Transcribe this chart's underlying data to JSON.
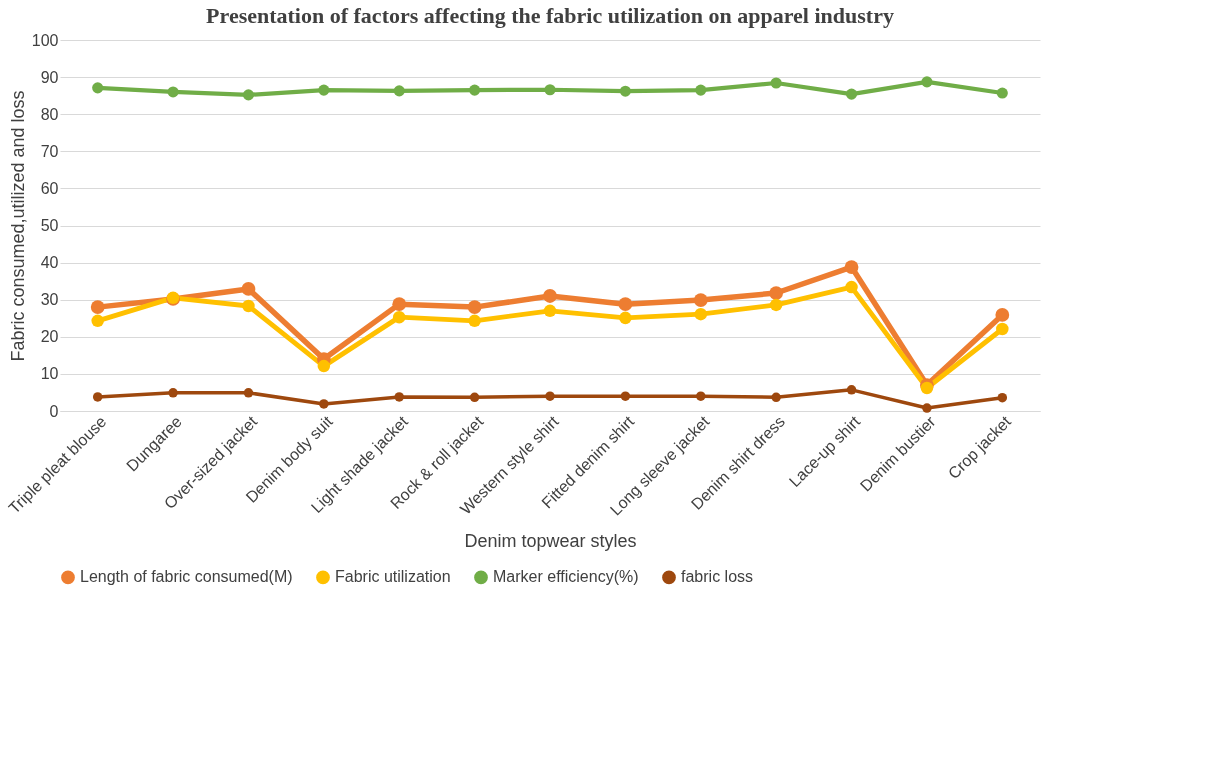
{
  "chart_data": {
    "type": "line",
    "title": "Presentation of factors affecting the fabric utilization on apparel industry",
    "xlabel": "Denim topwear styles",
    "ylabel": "Fabric consumed,utilized and loss",
    "categories": [
      "Triple pleat blouse",
      "Dungaree",
      "Over-sized jacket",
      "Denim body suit",
      "Light shade jacket",
      "Rock & roll jacket",
      "Western style shirt",
      "Fitted denim shirt",
      "Long sleeve jacket",
      "Denim shirt dress",
      "Lace-up shirt",
      "Denim bustier",
      "Crop jacket"
    ],
    "series": [
      {
        "name": "Length of fabric consumed(M)",
        "color": "#ed7d31",
        "values": [
          28,
          30.2,
          32.9,
          14,
          28.8,
          28,
          31,
          28.8,
          29.9,
          31.8,
          38.8,
          7,
          25.9
        ]
      },
      {
        "name": "Fabric utilization",
        "color": "#ffc000",
        "values": [
          24.3,
          30.5,
          28.3,
          12.1,
          25.3,
          24.3,
          27,
          25.1,
          26.1,
          28.6,
          33.4,
          6.2,
          22.1
        ]
      },
      {
        "name": "Marker efficiency(%)",
        "color": "#70ad47",
        "values": [
          87.1,
          86,
          85.2,
          86.5,
          86.3,
          86.5,
          86.6,
          86.2,
          86.5,
          88.4,
          85.4,
          88.7,
          85.7
        ]
      },
      {
        "name": "fabric loss",
        "color": "#9e480e",
        "values": [
          3.8,
          4.9,
          4.9,
          1.9,
          3.8,
          3.7,
          4,
          4,
          4,
          3.7,
          5.7,
          0.8,
          3.6
        ]
      }
    ],
    "ylim": [
      0,
      100
    ],
    "yticks": [
      0,
      10,
      20,
      30,
      40,
      50,
      60,
      70,
      80,
      90,
      100
    ],
    "grid": "y",
    "legend": "bottom",
    "marker": "circle",
    "line_style": "solid"
  }
}
